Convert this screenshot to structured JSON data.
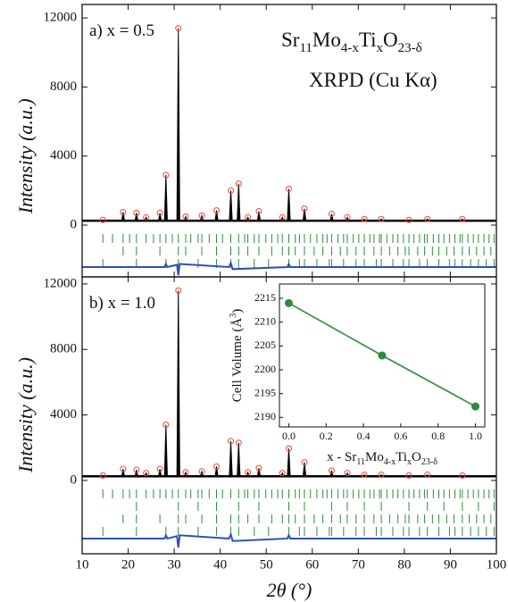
{
  "chart_data": [
    {
      "type": "diffraction",
      "label": "a) x = 0.5",
      "ylabel": "Intensity (a.u.)",
      "xlim": [
        10,
        100
      ],
      "ylim": [
        -3000,
        12780
      ],
      "yticks": [
        0,
        4000,
        8000,
        12000
      ],
      "xticks": [
        10,
        20,
        30,
        40,
        50,
        60,
        70,
        80,
        90,
        100
      ],
      "background": 250,
      "x": [
        14.5,
        18.9,
        21.8,
        23.9,
        26.9,
        28.2,
        30.9,
        32.5,
        36,
        39.2,
        42.3,
        44,
        46,
        48.4,
        53.5,
        54.9,
        58.3,
        64.2,
        67.6,
        71.3,
        75,
        81,
        85,
        92.6
      ],
      "values": [
        300,
        750,
        700,
        450,
        700,
        2900,
        11400,
        500,
        550,
        850,
        2000,
        2400,
        450,
        800,
        450,
        2100,
        950,
        650,
        450,
        350,
        350,
        300,
        350,
        350
      ],
      "observed_color": "#e8453c",
      "calculated_color": "#000000",
      "reflection_color": "#2e8b3c",
      "reflections": [
        [
          14.5,
          16.6,
          18.9,
          20.3,
          21.8,
          23.9,
          25.5,
          26.9,
          28.2,
          29.6,
          30.9,
          32.5,
          33.6,
          35.2,
          36,
          37.6,
          39.2,
          40.5,
          42.3,
          44,
          45.3,
          46,
          47.4,
          48.4,
          49.9,
          51.2,
          52.5,
          53.5,
          54.9,
          56.3,
          57.2,
          58.3,
          59.6,
          61,
          62.3,
          63.2,
          64.2,
          65.6,
          66.8,
          67.6,
          68.9,
          70.1,
          71.3,
          72.5,
          73.4,
          74.6,
          75,
          76.2,
          77.5,
          78.6,
          79.8,
          81,
          82.1,
          83.3,
          84.4,
          85,
          86.3,
          87.5,
          88.6,
          89.8,
          91,
          92.1,
          92.6,
          93.8,
          95,
          96.1,
          97.3,
          98.4,
          99.5
        ],
        [
          18.9,
          21.8,
          26.9,
          30.9,
          32.5,
          36,
          39.2,
          42.3,
          44,
          46,
          48.4,
          51.2,
          53.5,
          54.9,
          56.3,
          58.3,
          60.4,
          62.3,
          64.2,
          66.1,
          67.6,
          69.5,
          71.3,
          73.4,
          75,
          76.8,
          78.6,
          80.2,
          81,
          82.9,
          84.4,
          86.1,
          87.5,
          89.2,
          90.8,
          92.6,
          94.1,
          95.7,
          97.3,
          98.8
        ],
        [
          14.5,
          21.8,
          28.2,
          30.9,
          35.2,
          39.2,
          42.3,
          44,
          47.4,
          50.5,
          54.9,
          57.2,
          58.3,
          61,
          63.7,
          64.2,
          66.8,
          69.5,
          71.3,
          73.9,
          75,
          77.5,
          79.8,
          81,
          83.3,
          85,
          87.5,
          89.8,
          91,
          92.6,
          94.4,
          96.1,
          97.8,
          99.5
        ]
      ],
      "difference": {
        "color": "#2f4fb3",
        "x": [
          10,
          27.9,
          28.2,
          28.5,
          30.6,
          30.9,
          31.2,
          41.9,
          42.3,
          42.7,
          54.6,
          54.9,
          55.2,
          100
        ],
        "values": [
          -2430,
          -2430,
          -2250,
          -2430,
          -2300,
          -2900,
          -2250,
          -2430,
          -2200,
          -2550,
          -2430,
          -2250,
          -2430,
          -2430
        ]
      }
    },
    {
      "type": "diffraction",
      "label": "b) x = 1.0",
      "ylabel": "Intensity (a.u.)",
      "xlim": [
        10,
        100
      ],
      "ylim": [
        -4480,
        12430
      ],
      "yticks": [
        0,
        4000,
        8000,
        12000
      ],
      "xticks": [
        10,
        20,
        30,
        40,
        50,
        60,
        70,
        80,
        90,
        100
      ],
      "background": 250,
      "x": [
        14.5,
        18.9,
        21.8,
        23.9,
        26.9,
        28.2,
        30.9,
        32.5,
        36,
        39.2,
        42.3,
        44,
        46,
        48.4,
        53.5,
        54.9,
        58.3,
        64.2,
        67.6,
        71.3,
        75,
        81,
        85,
        92.6
      ],
      "values": [
        300,
        700,
        650,
        450,
        700,
        3400,
        11600,
        500,
        550,
        850,
        2400,
        2300,
        500,
        750,
        450,
        1950,
        1100,
        600,
        450,
        350,
        350,
        300,
        350,
        300
      ],
      "observed_color": "#e8453c",
      "calculated_color": "#000000",
      "reflection_color": "#2e8b3c",
      "reflections": [
        [
          14.5,
          16.6,
          18.9,
          20.3,
          21.8,
          23.9,
          25.5,
          26.9,
          28.2,
          29.6,
          30.9,
          32.5,
          33.6,
          35.2,
          36,
          37.6,
          39.2,
          40.5,
          42.3,
          44,
          45.3,
          46,
          47.4,
          48.4,
          49.9,
          51.2,
          52.5,
          53.5,
          54.9,
          56.3,
          57.2,
          58.3,
          59.6,
          61,
          62.3,
          63.2,
          64.2,
          65.6,
          66.8,
          67.6,
          68.9,
          70.1,
          71.3,
          72.5,
          73.4,
          74.6,
          75,
          76.2,
          77.5,
          78.6,
          79.8,
          81,
          82.1,
          83.3,
          84.4,
          85,
          86.3,
          87.5,
          88.6,
          89.8,
          91,
          92.1,
          92.6,
          93.8,
          95,
          96.1,
          97.3,
          98.4,
          99.5
        ],
        [
          21.8,
          30.9,
          35.2,
          39.2,
          44,
          48.4,
          54.9,
          58.3,
          64.2,
          67.6,
          71.3,
          75,
          81,
          85,
          88.6,
          92.6,
          96.1,
          99.5
        ],
        [
          18.9,
          21.8,
          26.9,
          30.9,
          32.5,
          36,
          39.2,
          42.3,
          44,
          46,
          48.4,
          51.2,
          53.5,
          54.9,
          56.3,
          58.3,
          60.4,
          62.3,
          64.2,
          66.1,
          67.6,
          69.5,
          71.3,
          73.4,
          75,
          76.8,
          78.6,
          80.2,
          81,
          82.9,
          84.4,
          86.1,
          87.5,
          89.2,
          90.8,
          92.6,
          94.1,
          95.7,
          97.3,
          98.8
        ],
        [
          14.5,
          21.8,
          28.2,
          30.9,
          35.2,
          39.2,
          42.3,
          44,
          47.4,
          50.5,
          54.9,
          57.2,
          58.3,
          61,
          63.7,
          64.2,
          66.8,
          69.5,
          71.3,
          73.9,
          75,
          77.5,
          79.8,
          81,
          83.3,
          85,
          87.5,
          89.8,
          91,
          92.6,
          94.4,
          96.1,
          97.8,
          99.5
        ]
      ],
      "difference": {
        "color": "#2f4fb3",
        "x": [
          10,
          27.9,
          28.2,
          28.5,
          30.6,
          30.9,
          31.2,
          41.9,
          42.3,
          42.7,
          54.6,
          54.9,
          55.2,
          100
        ],
        "values": [
          -3550,
          -3550,
          -3350,
          -3550,
          -3400,
          -4100,
          -3350,
          -3550,
          -3300,
          -3700,
          -3550,
          -3350,
          -3550,
          -3550
        ]
      }
    },
    {
      "type": "line",
      "x": [
        0,
        0.5,
        1.0
      ],
      "values": [
        2214,
        2203,
        2192.3
      ],
      "color": "#2e8b3c",
      "xlim": [
        -0.05,
        1.05
      ],
      "ylim": [
        2188,
        2218
      ],
      "xticks": [
        {
          "value": 0,
          "label": "0.0"
        },
        {
          "value": 0.2,
          "label": "0.2"
        },
        {
          "value": 0.4,
          "label": "0.4"
        },
        {
          "value": 0.6,
          "label": "0.6"
        },
        {
          "value": 0.8,
          "label": "0.8"
        },
        {
          "value": 1,
          "label": "1.0"
        }
      ],
      "yticks": [
        2190,
        2195,
        2200,
        2205,
        2210,
        2215
      ],
      "ylabel": [
        "Cell Volume (Å",
        "3",
        ")"
      ],
      "xlabel": [
        "x - Sr",
        "11",
        "Mo",
        "4-x",
        "Ti",
        "x",
        "O",
        "23-δ"
      ]
    }
  ],
  "annotations": {
    "formula": [
      "Sr",
      "11",
      "Mo",
      "4-x",
      "Ti",
      "x",
      "O",
      "23-δ"
    ],
    "technique": "XRPD (Cu Kα)",
    "xlabel": "2θ (°)"
  }
}
